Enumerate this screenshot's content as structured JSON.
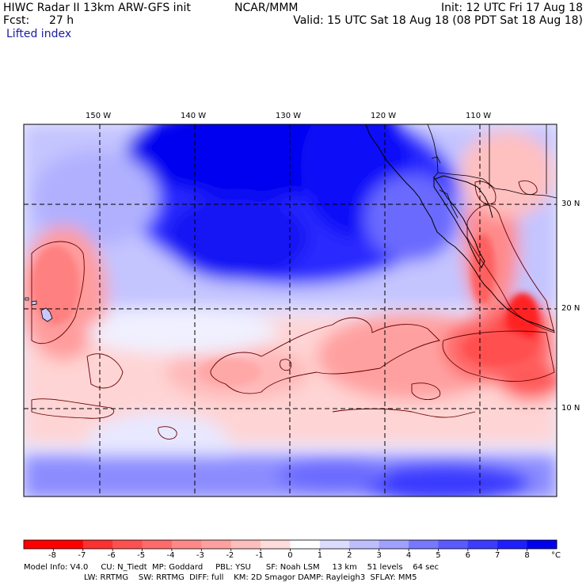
{
  "header": {
    "title": "HIWC Radar II 13km ARW-GFS init",
    "source": "NCAR/MMM",
    "init": "Init: 12 UTC Fri 17 Aug 18",
    "fcst_label": "Fcst:",
    "fcst_value": "27 h",
    "valid": "Valid: 15 UTC Sat 18 Aug 18 (08 PDT Sat 18 Aug 18)",
    "field": "Lifted index"
  },
  "map": {
    "lon_labels": [
      "150 W",
      "140 W",
      "130 W",
      "120 W",
      "110 W"
    ],
    "lat_labels": [
      "30 N",
      "20 N",
      "10 N"
    ]
  },
  "colorbar": {
    "tick_labels": [
      "-8",
      "-7",
      "-6",
      "-5",
      "-4",
      "-3",
      "-2",
      "-1",
      "0",
      "1",
      "2",
      "3",
      "4",
      "5",
      "6",
      "7",
      "8"
    ],
    "unit": "°C",
    "colors": [
      "#ff0000",
      "#ff3030",
      "#ff5050",
      "#ff6a6a",
      "#ff8888",
      "#ffa0a0",
      "#ffbebe",
      "#ffdcdc",
      "#ffffff",
      "#dcdcff",
      "#bebeff",
      "#a0a0ff",
      "#7878ff",
      "#5a5aff",
      "#3c3cff",
      "#1e1eff",
      "#0000ee"
    ]
  },
  "footer": {
    "line1": "Model Info: V4.0     CU: N_Tiedt  MP: Goddard     PBL: YSU      SF: Noah LSM     13 km    51 levels    64 sec",
    "line2": "LW: RRTMG    SW: RRTMG  DIFF: full    KM: 2D Smagor DAMP: Rayleigh3  SFLAY: MM5"
  }
}
